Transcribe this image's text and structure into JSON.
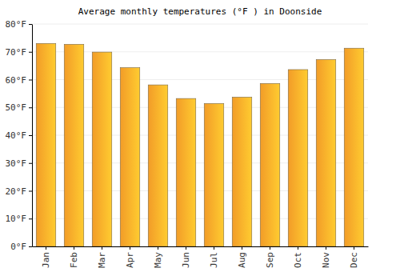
{
  "chart_data": {
    "type": "bar",
    "title": "Average monthly temperatures (°F ) in Doonside",
    "categories": [
      "Jan",
      "Feb",
      "Mar",
      "Apr",
      "May",
      "Jun",
      "Jul",
      "Aug",
      "Sep",
      "Oct",
      "Nov",
      "Dec"
    ],
    "values": [
      73,
      72.7,
      69.9,
      64.3,
      58.1,
      53.2,
      51.4,
      53.7,
      58.6,
      63.6,
      67.2,
      71.3
    ],
    "color": "#ffa52a",
    "ylim": [
      0,
      80
    ],
    "yticks": [
      {
        "value": 0,
        "label": "0°F"
      },
      {
        "value": 10,
        "label": "10°F"
      },
      {
        "value": 20,
        "label": "20°F"
      },
      {
        "value": 30,
        "label": "30°F"
      },
      {
        "value": 40,
        "label": "40°F"
      },
      {
        "value": 50,
        "label": "50°F"
      },
      {
        "value": 60,
        "label": "60°F"
      },
      {
        "value": 70,
        "label": "70°F"
      },
      {
        "value": 80,
        "label": "80°F"
      }
    ],
    "grid": true
  }
}
